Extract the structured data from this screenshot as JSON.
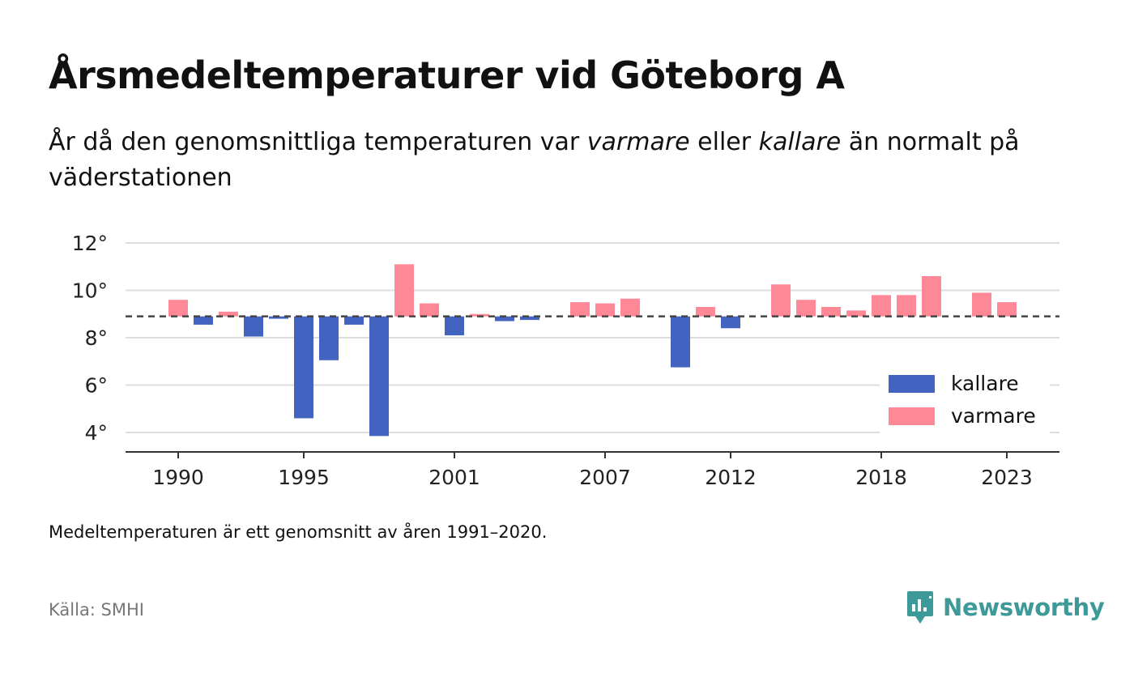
{
  "header": {
    "title": "Årsmedeltemperaturer vid Göteborg A",
    "subtitle_prefix": "År då den genomsnittliga temperaturen var ",
    "subtitle_warm": "varmare",
    "subtitle_middle": " eller ",
    "subtitle_cold": "kallare",
    "subtitle_suffix": " än normalt på väderstationen"
  },
  "footer": {
    "note": "Medeltemperaturen är ett genomsnitt av åren 1991–2020.",
    "source": "Källa: SMHI",
    "brand": "Newsworthy",
    "brand_icon": "newsworthy-logo-icon",
    "brand_color": "#3d9a98"
  },
  "chart_data": {
    "type": "bar",
    "title": "Årsmedeltemperaturer vid Göteborg A",
    "baseline": 8.9,
    "ylim": [
      3.2,
      12
    ],
    "y_ticks": [
      4,
      6,
      8,
      10,
      12
    ],
    "y_tick_labels": [
      "4°",
      "6°",
      "8°",
      "10°",
      "12°"
    ],
    "x_ticks": [
      1990,
      1995,
      2001,
      2007,
      2012,
      2018,
      2023
    ],
    "x_tick_labels": [
      "1990",
      "1995",
      "2001",
      "2007",
      "2012",
      "2018",
      "2023"
    ],
    "xlim": [
      1989,
      2025
    ],
    "grid": true,
    "legend_position": "bottom-right",
    "series": [
      {
        "name": "kallare",
        "color": "#4263c0"
      },
      {
        "name": "varmare",
        "color": "#ff8896"
      }
    ],
    "data": [
      {
        "x": 1990,
        "y": 9.6
      },
      {
        "x": 1991,
        "y": 8.55
      },
      {
        "x": 1992,
        "y": 9.1
      },
      {
        "x": 1993,
        "y": 8.05
      },
      {
        "x": 1994,
        "y": 8.8
      },
      {
        "x": 1995,
        "y": 4.6
      },
      {
        "x": 1996,
        "y": 7.05
      },
      {
        "x": 1997,
        "y": 8.55
      },
      {
        "x": 1998,
        "y": 3.85
      },
      {
        "x": 1999,
        "y": 11.1
      },
      {
        "x": 2000,
        "y": 9.45
      },
      {
        "x": 2001,
        "y": 8.1
      },
      {
        "x": 2002,
        "y": 9.0
      },
      {
        "x": 2003,
        "y": 8.7
      },
      {
        "x": 2004,
        "y": 8.75
      },
      {
        "x": 2006,
        "y": 9.5
      },
      {
        "x": 2007,
        "y": 9.45
      },
      {
        "x": 2008,
        "y": 9.65
      },
      {
        "x": 2010,
        "y": 6.75
      },
      {
        "x": 2011,
        "y": 9.3
      },
      {
        "x": 2012,
        "y": 8.4
      },
      {
        "x": 2014,
        "y": 10.25
      },
      {
        "x": 2015,
        "y": 9.6
      },
      {
        "x": 2016,
        "y": 9.3
      },
      {
        "x": 2017,
        "y": 9.15
      },
      {
        "x": 2018,
        "y": 9.8
      },
      {
        "x": 2019,
        "y": 9.8
      },
      {
        "x": 2020,
        "y": 10.6
      },
      {
        "x": 2022,
        "y": 9.9
      },
      {
        "x": 2023,
        "y": 9.5
      }
    ]
  }
}
